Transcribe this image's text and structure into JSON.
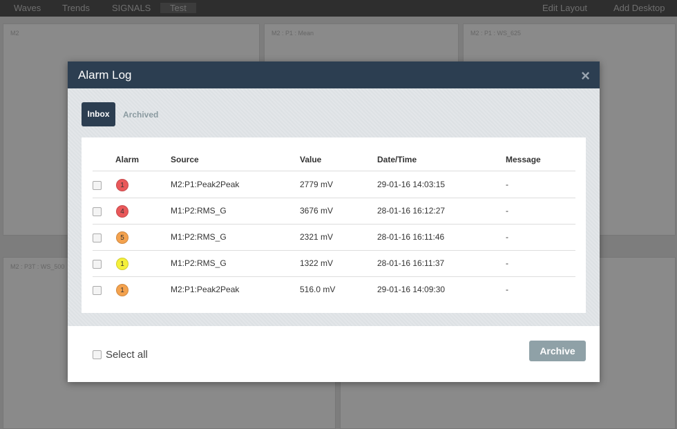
{
  "background": {
    "tabs": [
      "Waves",
      "Trends",
      "SIGNALS",
      "Test"
    ],
    "actions": [
      "Edit Layout",
      "Add Desktop"
    ],
    "panels": [
      "M2",
      "M2 : P1 : Mean",
      "M2 : P1 : WS_625",
      "M2 : P3T : WS_500"
    ]
  },
  "dialog": {
    "title": "Alarm Log",
    "close": "×",
    "tabs": [
      "Inbox",
      "Archived"
    ],
    "table": {
      "headers": [
        "Alarm",
        "Source",
        "Value",
        "Date/Time",
        "Message"
      ],
      "rows": [
        [
          1,
          "M2:P1:Peak2Peak",
          "2779 mV",
          "29-01-16 14:03:15",
          "-"
        ],
        [
          4,
          "M1:P2:RMS_G",
          "3676 mV",
          "28-01-16 16:12:27",
          "-"
        ],
        [
          5,
          "M1:P2:RMS_G",
          "2321 mV",
          "28-01-16 16:11:46",
          "-"
        ],
        [
          1,
          "M1:P2:RMS_G",
          "1322 mV",
          "28-01-16 16:11:37",
          "-"
        ],
        [
          1,
          "M2:P1:Peak2Peak",
          "516.0 mV",
          "29-01-16 14:09:30",
          "-"
        ]
      ],
      "alarm_colors": [
        "#e9585a",
        "#e9585a",
        "#f4a24e",
        "#f5f03a",
        "#f4a24e"
      ]
    },
    "select_all": "Select all",
    "archive": "Archive"
  }
}
